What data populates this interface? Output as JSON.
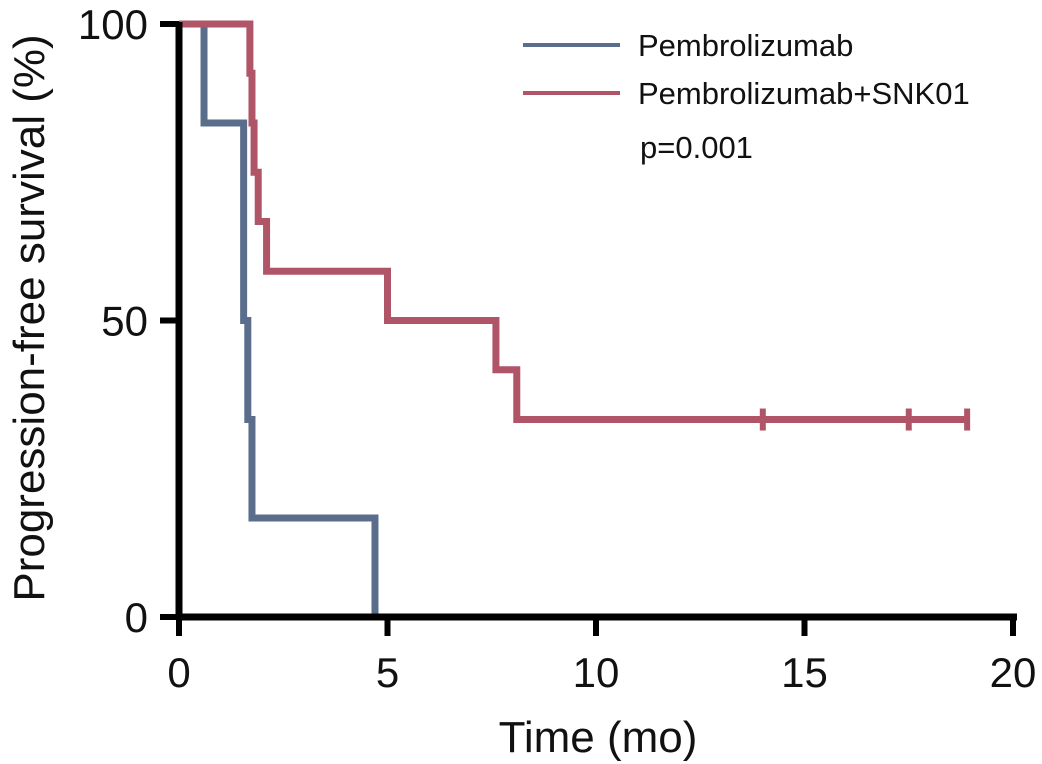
{
  "chart_data": {
    "type": "line",
    "subtype": "kaplan-meier",
    "title": "",
    "xlabel": "Time (mo)",
    "ylabel": "Progression-free survival (%)",
    "xlim": [
      0,
      20
    ],
    "ylim": [
      0,
      100
    ],
    "xticks": [
      0,
      5,
      10,
      15,
      20
    ],
    "xtick_labels": [
      "0",
      "5",
      "10",
      "15",
      "20"
    ],
    "yticks": [
      0,
      50,
      100
    ],
    "ytick_labels": [
      "0",
      "50",
      "100"
    ],
    "grid": false,
    "legend_position": "top-right",
    "annotation": "p=0.001",
    "series": [
      {
        "name": "Pembrolizumab",
        "color": "#5a6e8c",
        "steps": [
          [
            0,
            100
          ],
          [
            0.6,
            83.3
          ],
          [
            1.55,
            50
          ],
          [
            1.65,
            33.3
          ],
          [
            1.75,
            16.7
          ],
          [
            4.7,
            0
          ]
        ],
        "end_x": 4.7,
        "censored": []
      },
      {
        "name": "Pembrolizumab+SNK01",
        "color": "#b05468",
        "steps": [
          [
            0.75,
            100
          ],
          [
            1.7,
            91.7
          ],
          [
            1.75,
            83.3
          ],
          [
            1.8,
            75
          ],
          [
            1.9,
            66.7
          ],
          [
            2.1,
            58.3
          ],
          [
            5.0,
            50
          ],
          [
            7.6,
            41.7
          ],
          [
            8.1,
            33.3
          ]
        ],
        "end_x": 18.9,
        "censored": [
          [
            14.0,
            33.3
          ],
          [
            17.5,
            33.3
          ],
          [
            18.9,
            33.3
          ]
        ]
      }
    ]
  }
}
